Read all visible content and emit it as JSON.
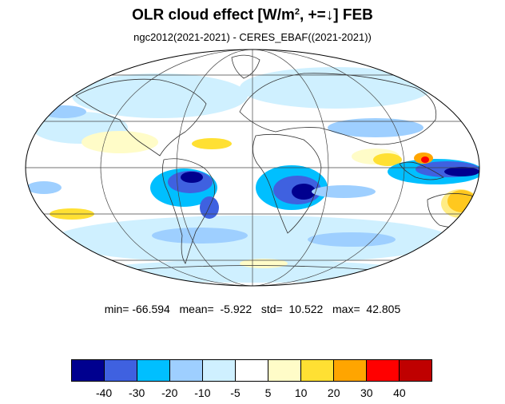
{
  "title": {
    "text": "OLR cloud effect [W/m",
    "sup": "2",
    "suffix": ", +=↓]  FEB"
  },
  "subtitle": "ngc2012(2021-2021) - CERES_EBAF((2021-2021))",
  "stats": {
    "min_label": "min=",
    "min": "-66.594",
    "mean_label": "mean=",
    "mean": "-5.922",
    "std_label": "std=",
    "std": "10.522",
    "max_label": "max=",
    "max": "42.805"
  },
  "map": {
    "projection": "mollweide",
    "ocean_color": "#ffffff",
    "coastline_color": "#333333",
    "grid_color": "#444444"
  },
  "colorbar": {
    "colors": [
      "#00008f",
      "#3f61e0",
      "#00bfff",
      "#9ecfff",
      "#cff0ff",
      "#ffffff",
      "#fffcc8",
      "#ffe033",
      "#ffa500",
      "#ff0000",
      "#bf0000"
    ],
    "labels": [
      "-40",
      "-30",
      "-20",
      "-10",
      "-5",
      "5",
      "10",
      "20",
      "30",
      "40"
    ]
  }
}
